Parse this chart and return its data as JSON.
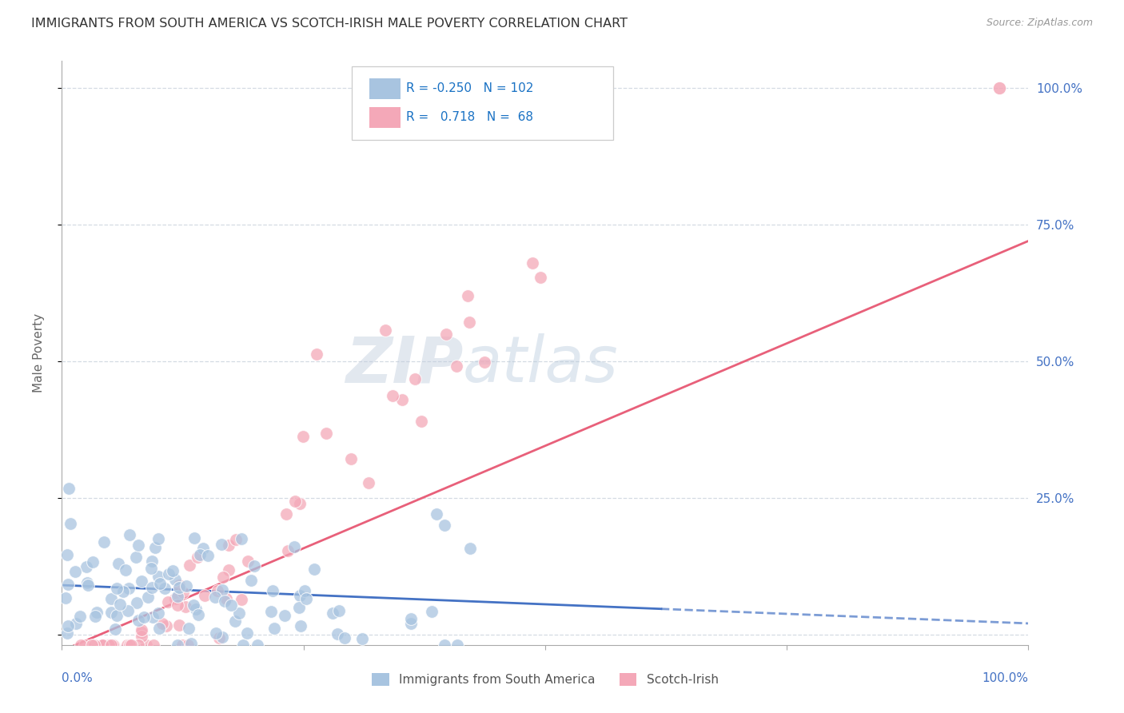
{
  "title": "IMMIGRANTS FROM SOUTH AMERICA VS SCOTCH-IRISH MALE POVERTY CORRELATION CHART",
  "source": "Source: ZipAtlas.com",
  "ylabel": "Male Poverty",
  "yticks": [
    0.0,
    0.25,
    0.5,
    0.75,
    1.0
  ],
  "ytick_labels": [
    "",
    "25.0%",
    "50.0%",
    "75.0%",
    "100.0%"
  ],
  "blue_R": -0.25,
  "blue_N": 102,
  "pink_R": 0.718,
  "pink_N": 68,
  "blue_color": "#a8c4e0",
  "pink_color": "#f4a8b8",
  "blue_line_color": "#4472c4",
  "pink_line_color": "#e8607a",
  "blue_label": "Immigrants from South America",
  "pink_label": "Scotch-Irish",
  "legend_text_color": "#1a72c4",
  "watermark_zip": "ZIP",
  "watermark_atlas": "atlas",
  "background_color": "#ffffff",
  "grid_color": "#d0d8e0",
  "title_color": "#333333",
  "axis_label_color": "#4472c4",
  "xlim": [
    0.0,
    1.0
  ],
  "ylim": [
    -0.02,
    1.05
  ]
}
